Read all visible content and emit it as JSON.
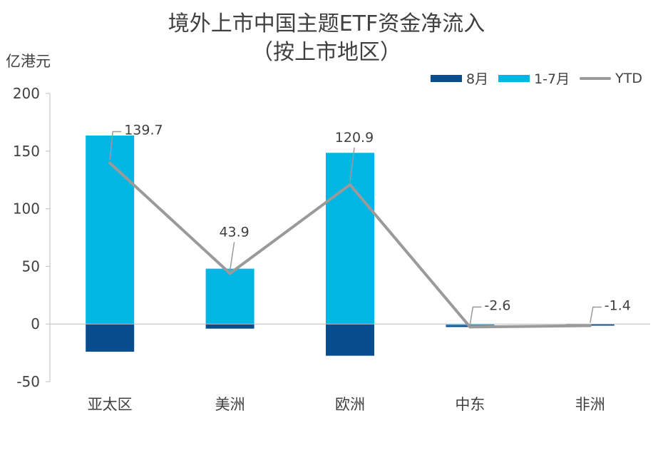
{
  "chart_data": {
    "type": "bar",
    "title": "境外上市中国主题ETF资金净流入",
    "subtitle": "（按上市地区）",
    "ylabel": "亿港元",
    "ylim": [
      -50,
      200
    ],
    "yticks": [
      200,
      150,
      100,
      50,
      0,
      -50
    ],
    "categories": [
      "亚太区",
      "美洲",
      "欧洲",
      "中东",
      "非洲"
    ],
    "series": [
      {
        "name": "8月",
        "type": "bar",
        "color": "#0a4d8c",
        "values": [
          -24,
          -4,
          -27.5,
          -1.4,
          -1.4
        ]
      },
      {
        "name": "1-7月",
        "type": "bar",
        "color": "#00b7e4",
        "values": [
          163.5,
          48,
          148.5,
          -1.2,
          0
        ]
      },
      {
        "name": "YTD",
        "type": "line",
        "color": "#9a9a9a",
        "values": [
          139.7,
          43.9,
          120.9,
          -2.6,
          -1.4
        ],
        "labels": [
          "139.7",
          "43.9",
          "120.9",
          "-2.6",
          "-1.4"
        ]
      }
    ],
    "stacked": true,
    "grid": false,
    "legend": "top-right"
  }
}
